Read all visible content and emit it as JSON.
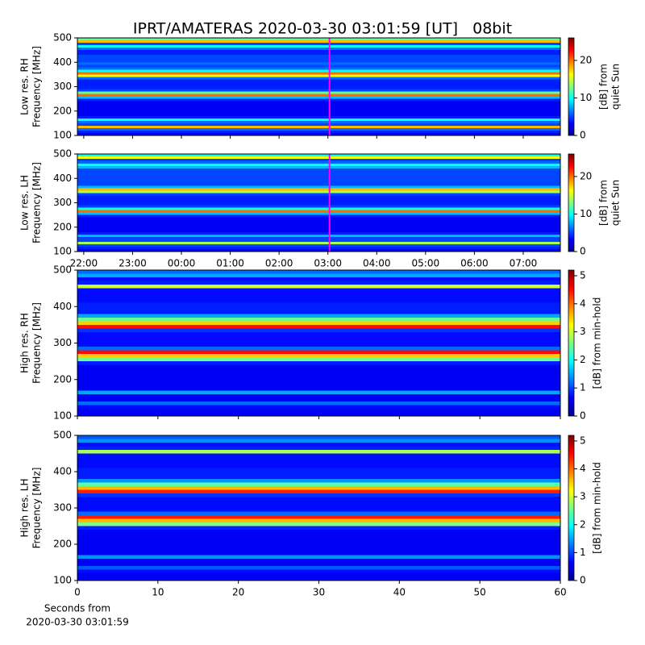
{
  "title": "IPRT/AMATERAS 2020-03-30 03:01:59 [UT]   08bit",
  "chart_data": [
    {
      "type": "heatmap",
      "ylabel": [
        "Low res. RH",
        "Frequency [MHz]"
      ],
      "zlabel": [
        "[dB] from",
        "quiet Sun"
      ],
      "xlim": [
        21.87,
        31.76
      ],
      "xticks": [
        22,
        23,
        24,
        25,
        26,
        27,
        28,
        29,
        30,
        31
      ],
      "xticklabels": false,
      "ylim": [
        100,
        500
      ],
      "yticks": [
        100,
        200,
        300,
        400,
        500
      ],
      "zlim": [
        0,
        26
      ],
      "zticks": [
        0,
        10,
        20
      ],
      "colormap": "jet",
      "vline": 27.033,
      "vline_color": "#ff00ff",
      "freq_bins": [
        100,
        110,
        120,
        130,
        140,
        150,
        160,
        170,
        180,
        190,
        200,
        210,
        220,
        230,
        240,
        250,
        260,
        270,
        280,
        290,
        300,
        310,
        320,
        330,
        340,
        350,
        360,
        370,
        380,
        390,
        400,
        410,
        420,
        430,
        440,
        450,
        460,
        470,
        480,
        490,
        500
      ],
      "values": [
        3,
        4,
        6,
        18,
        5,
        6,
        10,
        4,
        3,
        3,
        3,
        3,
        3,
        3,
        4,
        8,
        20,
        12,
        5,
        4,
        4,
        4,
        4,
        6,
        16,
        20,
        10,
        6,
        5,
        6,
        5,
        5,
        5,
        4,
        4,
        6,
        10,
        5,
        18,
        12
      ]
    },
    {
      "type": "heatmap",
      "ylabel": [
        "Low res. LH",
        "Frequency [MHz]"
      ],
      "zlabel": [
        "[dB] from",
        "quiet Sun"
      ],
      "xlim": [
        21.87,
        31.76
      ],
      "xticks": [
        {
          "value": 22,
          "label": "22:00"
        },
        {
          "value": 23,
          "label": "23:00"
        },
        {
          "value": 24,
          "label": "00:00"
        },
        {
          "value": 25,
          "label": "01:00"
        },
        {
          "value": 26,
          "label": "02:00"
        },
        {
          "value": 27,
          "label": "03:00"
        },
        {
          "value": 28,
          "label": "04:00"
        },
        {
          "value": 29,
          "label": "05:00"
        },
        {
          "value": 30,
          "label": "06:00"
        },
        {
          "value": 31,
          "label": "07:00"
        }
      ],
      "ylim": [
        100,
        500
      ],
      "yticks": [
        100,
        200,
        300,
        400,
        500
      ],
      "zlim": [
        0,
        26
      ],
      "zticks": [
        0,
        10,
        20
      ],
      "colormap": "jet",
      "vline": 27.033,
      "vline_color": "#ff00ff",
      "freq_bins": [
        100,
        110,
        120,
        130,
        140,
        150,
        160,
        170,
        180,
        190,
        200,
        210,
        220,
        230,
        240,
        250,
        260,
        270,
        280,
        290,
        300,
        310,
        320,
        330,
        340,
        350,
        360,
        370,
        380,
        390,
        400,
        410,
        420,
        430,
        440,
        450,
        460,
        470,
        480,
        490,
        500
      ],
      "values": [
        3,
        4,
        5,
        14,
        5,
        5,
        8,
        4,
        3,
        3,
        3,
        3,
        3,
        3,
        4,
        8,
        20,
        10,
        5,
        4,
        4,
        4,
        4,
        5,
        14,
        18,
        8,
        5,
        5,
        5,
        5,
        5,
        5,
        5,
        8,
        10,
        6,
        5,
        16,
        10
      ]
    },
    {
      "type": "heatmap",
      "ylabel": [
        "High res. RH",
        "Frequency [MHz]"
      ],
      "zlabel": [
        "[dB] from min-hold"
      ],
      "xlim": [
        0,
        60
      ],
      "xticks": [
        0,
        10,
        20,
        30,
        40,
        50,
        60
      ],
      "xticklabels": false,
      "ylim": [
        100,
        500
      ],
      "yticks": [
        100,
        200,
        300,
        400,
        500
      ],
      "zlim": [
        0,
        5.2
      ],
      "zticks": [
        0,
        1,
        2,
        3,
        4,
        5
      ],
      "colormap": "jet",
      "freq_bins": [
        100,
        110,
        120,
        130,
        140,
        150,
        160,
        170,
        180,
        190,
        200,
        210,
        220,
        230,
        240,
        250,
        260,
        270,
        280,
        290,
        300,
        310,
        320,
        330,
        340,
        350,
        360,
        370,
        380,
        390,
        400,
        410,
        420,
        430,
        440,
        450,
        460,
        470,
        480,
        490,
        500
      ],
      "values": [
        0.6,
        0.6,
        0.7,
        1.2,
        0.6,
        0.6,
        1.5,
        0.6,
        0.6,
        0.6,
        0.6,
        0.6,
        0.6,
        0.6,
        0.8,
        2.5,
        3.5,
        4.5,
        1.2,
        0.7,
        0.7,
        0.7,
        0.7,
        0.9,
        4.5,
        3.5,
        2.5,
        1.5,
        0.8,
        0.8,
        0.8,
        0.7,
        0.7,
        0.7,
        0.7,
        3,
        0.8,
        0.7,
        1.5,
        1.2
      ]
    },
    {
      "type": "heatmap",
      "ylabel": [
        "High res. LH",
        "Frequency [MHz]"
      ],
      "zlabel": [
        "[dB] from min-hold"
      ],
      "xlim": [
        0,
        60
      ],
      "xticks": [
        0,
        10,
        20,
        30,
        40,
        50,
        60
      ],
      "xlabel": [
        "Seconds from",
        "2020-03-30 03:01:59"
      ],
      "ylim": [
        100,
        500
      ],
      "yticks": [
        100,
        200,
        300,
        400,
        500
      ],
      "zlim": [
        0,
        5.2
      ],
      "zticks": [
        0,
        1,
        2,
        3,
        4,
        5
      ],
      "colormap": "jet",
      "freq_bins": [
        100,
        110,
        120,
        130,
        140,
        150,
        160,
        170,
        180,
        190,
        200,
        210,
        220,
        230,
        240,
        250,
        260,
        270,
        280,
        290,
        300,
        310,
        320,
        330,
        340,
        350,
        360,
        370,
        380,
        390,
        400,
        410,
        420,
        430,
        440,
        450,
        460,
        470,
        480,
        490,
        500
      ],
      "values": [
        0.6,
        0.6,
        0.7,
        1.1,
        0.6,
        0.6,
        1.4,
        0.6,
        0.6,
        0.6,
        0.6,
        0.6,
        0.6,
        0.6,
        0.8,
        2.6,
        3.6,
        4.4,
        1.2,
        0.7,
        0.7,
        0.7,
        0.7,
        0.9,
        4.4,
        3.6,
        2.4,
        1.4,
        0.8,
        0.8,
        0.8,
        0.7,
        0.7,
        0.7,
        0.7,
        2.8,
        0.8,
        0.7,
        1.4,
        1.1
      ]
    }
  ]
}
